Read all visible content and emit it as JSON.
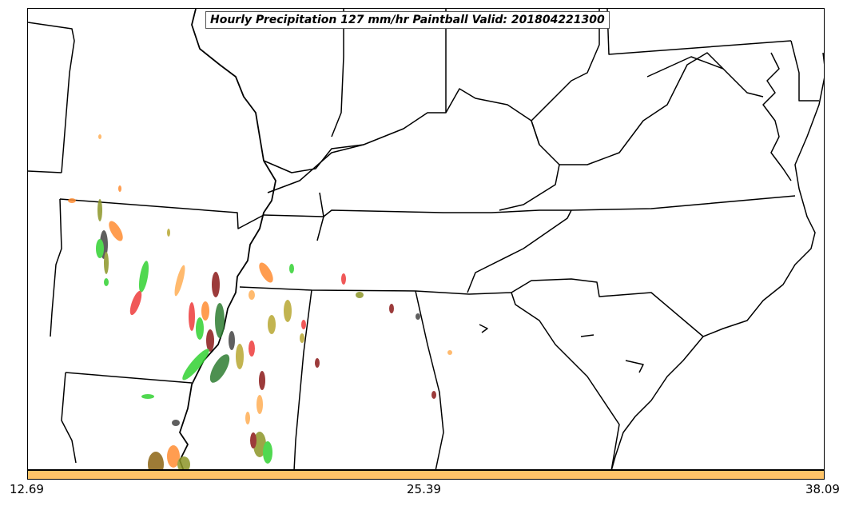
{
  "title": "Hourly Precipitation 127 mm/hr Paintball Valid: 201804221300",
  "colors": {
    "colorbar": "#ffc468",
    "paint_red": "#ee3b3b",
    "paint_orange": "#ff8c32",
    "paint_lightorange": "#ffae55",
    "paint_green": "#32d232",
    "paint_olive": "#8c9628",
    "paint_darkred": "#8b1a1a",
    "paint_gray": "#444444",
    "paint_darkgreen": "#2e7d32",
    "paint_khaki": "#b8a832"
  },
  "colorbar": {
    "ticks": [
      "12.69",
      "25.39",
      "38.09"
    ]
  }
}
